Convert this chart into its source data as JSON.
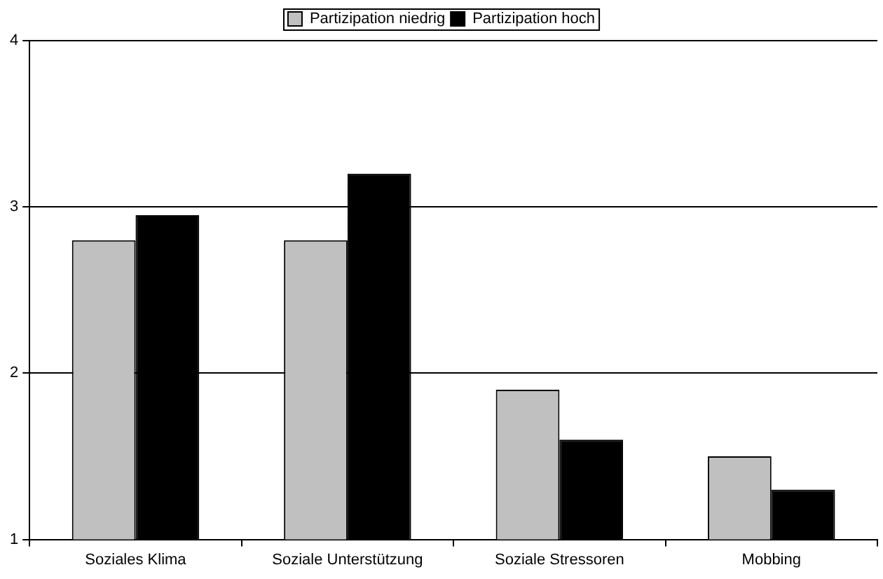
{
  "chart_data": {
    "type": "bar",
    "categories": [
      "Soziales Klima",
      "Soziale Unterstützung",
      "Soziale Stressoren",
      "Mobbing"
    ],
    "series": [
      {
        "name": "Partizipation niedrig",
        "color": "#c0c0c0",
        "values": [
          2.8,
          2.8,
          1.9,
          1.5
        ]
      },
      {
        "name": "Partizipation hoch",
        "color": "#000000",
        "values": [
          2.95,
          3.2,
          1.6,
          1.3
        ]
      }
    ],
    "ylim": [
      1,
      4
    ],
    "yticks": [
      1,
      2,
      3,
      4
    ],
    "grid": "y",
    "legend": "top"
  }
}
